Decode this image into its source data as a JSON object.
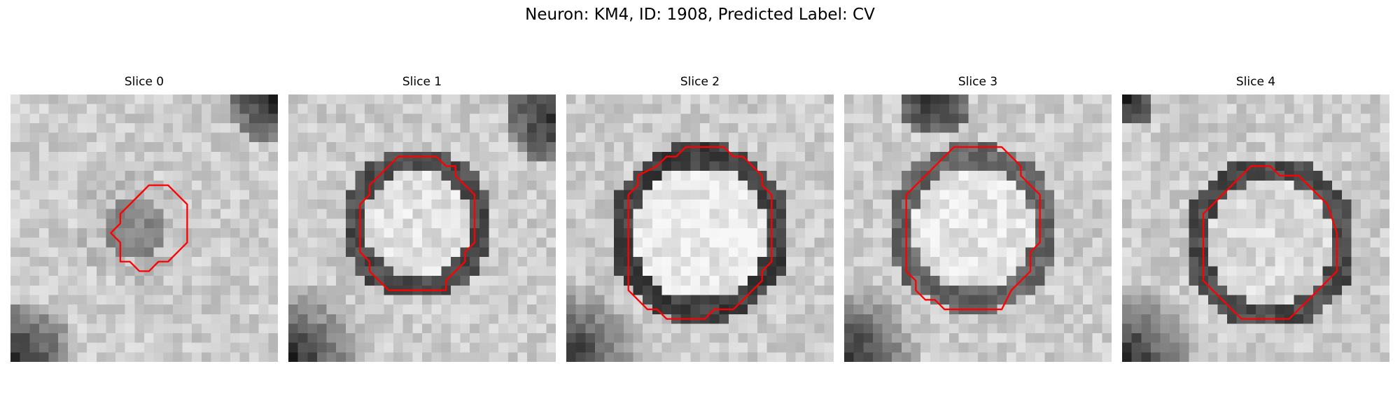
{
  "figure": {
    "title": "Neuron: KM4, ID: 1908, Predicted Label: CV",
    "outline_color": "#ff0000",
    "colormap": "grayscale",
    "panels": [
      {
        "title": "Slice 0",
        "image_description": "grayscale patch with a small dark roughly round cell-like region near the center",
        "outline": [
          [
            14.5,
            9.5
          ],
          [
            16.5,
            9.5
          ],
          [
            18.5,
            11.5
          ],
          [
            18.5,
            15.5
          ],
          [
            16.5,
            17.5
          ],
          [
            15.5,
            17.5
          ],
          [
            14.5,
            18.5
          ],
          [
            13.5,
            18.5
          ],
          [
            12.5,
            17.5
          ],
          [
            11.5,
            17.5
          ],
          [
            11.5,
            15.5
          ],
          [
            10.5,
            14.5
          ],
          [
            11.5,
            13.5
          ],
          [
            11.5,
            12.5
          ],
          [
            13.5,
            10.5
          ]
        ]
      },
      {
        "title": "Slice 1",
        "image_description": "grayscale patch with a bright circular region surrounded by a darker membrane ring",
        "outline": [
          [
            11.5,
            6.5
          ],
          [
            15.5,
            6.5
          ],
          [
            16.5,
            7.5
          ],
          [
            17.5,
            7.5
          ],
          [
            17.5,
            8.5
          ],
          [
            19.5,
            10.5
          ],
          [
            19.5,
            15.5
          ],
          [
            18.5,
            16.5
          ],
          [
            18.5,
            17.5
          ],
          [
            16.5,
            19.5
          ],
          [
            16.5,
            20.5
          ],
          [
            10.5,
            20.5
          ],
          [
            9.5,
            19.5
          ],
          [
            8.5,
            18.5
          ],
          [
            8.5,
            17.5
          ],
          [
            7.5,
            16.5
          ],
          [
            7.5,
            11.5
          ],
          [
            8.5,
            10.5
          ],
          [
            8.5,
            9.5
          ],
          [
            9.5,
            8.5
          ]
        ]
      },
      {
        "title": "Slice 2",
        "image_description": "grayscale patch with a large bright circular region bordered by a dark ring",
        "outline": [
          [
            12.5,
            5.5
          ],
          [
            16.5,
            5.5
          ],
          [
            17.5,
            6.5
          ],
          [
            18.5,
            6.5
          ],
          [
            20.5,
            8.5
          ],
          [
            20.5,
            9.5
          ],
          [
            21.5,
            10.5
          ],
          [
            21.5,
            17.5
          ],
          [
            20.5,
            18.5
          ],
          [
            20.5,
            19.5
          ],
          [
            17.5,
            22.5
          ],
          [
            15.5,
            22.5
          ],
          [
            14.5,
            23.5
          ],
          [
            10.5,
            23.5
          ],
          [
            9.5,
            22.5
          ],
          [
            8.5,
            22.5
          ],
          [
            6.5,
            20.5
          ],
          [
            6.5,
            10.5
          ],
          [
            7.5,
            9.5
          ],
          [
            7.5,
            8.5
          ],
          [
            9.5,
            7.5
          ],
          [
            10.5,
            6.5
          ],
          [
            11.5,
            6.5
          ]
        ]
      },
      {
        "title": "Slice 3",
        "image_description": "grayscale patch with a bright circular region and a thick dark membrane ring",
        "outline": [
          [
            11.5,
            5.5
          ],
          [
            16.5,
            5.5
          ],
          [
            18.5,
            7.5
          ],
          [
            18.5,
            8.5
          ],
          [
            19.5,
            9.5
          ],
          [
            20.5,
            10.5
          ],
          [
            20.5,
            15.5
          ],
          [
            19.5,
            16.5
          ],
          [
            19.5,
            18.5
          ],
          [
            18.5,
            19.5
          ],
          [
            17.5,
            20.5
          ],
          [
            16.5,
            22.5
          ],
          [
            10.5,
            22.5
          ],
          [
            9.5,
            21.5
          ],
          [
            8.5,
            21.5
          ],
          [
            7.5,
            20.5
          ],
          [
            7.5,
            19.5
          ],
          [
            6.5,
            18.5
          ],
          [
            6.5,
            10.5
          ],
          [
            7.5,
            9.5
          ],
          [
            8.5,
            8.5
          ],
          [
            9.5,
            7.5
          ],
          [
            10.5,
            6.5
          ]
        ]
      },
      {
        "title": "Slice 4",
        "image_description": "grayscale patch with a medium circular region outlined by a darker ring",
        "outline": [
          [
            13.5,
            7.5
          ],
          [
            14.5,
            7.5
          ],
          [
            15.5,
            7.5
          ],
          [
            16.5,
            8.5
          ],
          [
            18.5,
            8.5
          ],
          [
            20.5,
            10.5
          ],
          [
            21.5,
            11.5
          ],
          [
            22.5,
            14.5
          ],
          [
            22.5,
            18.5
          ],
          [
            21.5,
            19.5
          ],
          [
            20.5,
            20.5
          ],
          [
            19.5,
            21.5
          ],
          [
            18.5,
            22.5
          ],
          [
            17.5,
            23.5
          ],
          [
            12.5,
            23.5
          ],
          [
            11.5,
            22.5
          ],
          [
            10.5,
            21.5
          ],
          [
            9.5,
            20.5
          ],
          [
            8.5,
            19.5
          ],
          [
            8.5,
            12.5
          ],
          [
            9.5,
            11.5
          ],
          [
            10.5,
            10.5
          ],
          [
            11.5,
            9.5
          ],
          [
            12.5,
            8.5
          ]
        ]
      }
    ]
  }
}
